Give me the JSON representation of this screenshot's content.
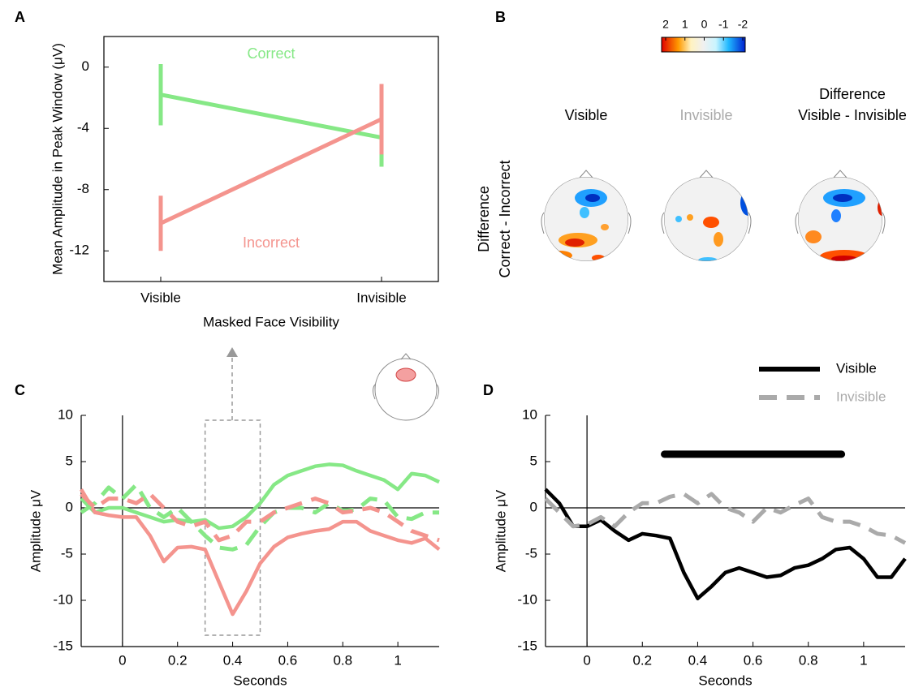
{
  "chart_data": [
    {
      "type": "line",
      "panel": "A",
      "ylabel": "Mean Amplitude in Peak Window (μV)",
      "xlabel": "Masked Face Visibility",
      "categories": [
        "Visible",
        "Invisible"
      ],
      "ylim": [
        -14,
        2
      ],
      "yticks": [
        -12,
        -8,
        -4,
        0
      ],
      "box": true,
      "inline_labels": true,
      "series": [
        {
          "name": "Correct",
          "color": "#86e886",
          "values": [
            -1.8,
            -4.6
          ],
          "errors": [
            2.0,
            1.9
          ]
        },
        {
          "name": "Incorrect",
          "color": "#f4948e",
          "values": [
            -10.2,
            -3.4
          ],
          "errors": [
            1.8,
            2.3
          ]
        }
      ]
    },
    {
      "type": "topomap",
      "panel": "B",
      "clim": [
        2,
        -2
      ],
      "cticks": [
        2,
        1,
        0,
        -1,
        -2
      ],
      "columns": [
        {
          "lines": [
            "Visible"
          ],
          "color": "#000000"
        },
        {
          "lines": [
            "Invisible"
          ],
          "color": "#aaaaaa"
        },
        {
          "lines": [
            "Difference",
            "Visible - Invisible"
          ],
          "color": "#000000"
        }
      ],
      "row_label": [
        "Difference",
        "Correct - Incorrect"
      ]
    },
    {
      "type": "line",
      "panel": "C",
      "ylabel": "Amplitude μV",
      "xlabel": "Seconds",
      "xlim": [
        -0.15,
        1.15
      ],
      "ylim": [
        -15,
        10
      ],
      "xticks": [
        0,
        0.2,
        0.4,
        0.6,
        0.8,
        1
      ],
      "yticks": [
        -15,
        -10,
        -5,
        0,
        5,
        10
      ],
      "zero_lines": true,
      "window": {
        "start": 0.3,
        "end": 0.5
      },
      "x": [
        -0.15,
        -0.1,
        -0.05,
        0,
        0.05,
        0.1,
        0.15,
        0.2,
        0.25,
        0.3,
        0.35,
        0.4,
        0.45,
        0.5,
        0.55,
        0.6,
        0.65,
        0.7,
        0.75,
        0.8,
        0.85,
        0.9,
        0.95,
        1,
        1.05,
        1.1,
        1.15
      ],
      "series": [
        {
          "color": "#86e886",
          "dash": false,
          "values": [
            1,
            -0.5,
            0,
            0,
            -0.5,
            -1,
            -1.5,
            -1.3,
            -1.5,
            -1.3,
            -2.2,
            -2,
            -1,
            0.5,
            2.5,
            3.5,
            4,
            4.5,
            4.7,
            4.6,
            4,
            3.5,
            3,
            2,
            3.7,
            3.5,
            2.8
          ]
        },
        {
          "color": "#f4948e",
          "dash": false,
          "values": [
            2,
            -0.5,
            -0.8,
            -1,
            -1,
            -3,
            -5.8,
            -4.3,
            -4.2,
            -4.5,
            -8,
            -11.5,
            -9,
            -6,
            -4.2,
            -3.2,
            -2.8,
            -2.5,
            -2.3,
            -1.5,
            -1.5,
            -2.5,
            -3,
            -3.5,
            -3.8,
            -3.3,
            -4.5
          ]
        },
        {
          "color": "#86e886",
          "dash": true,
          "values": [
            -0.5,
            0.5,
            2.2,
            1,
            2.5,
            0,
            -1,
            0,
            -1.5,
            -3,
            -4.3,
            -4.5,
            -4,
            -2,
            -0.5,
            0,
            0,
            -0.5,
            0.5,
            -0.3,
            -0.2,
            1,
            0.8,
            -1,
            -1.2,
            -0.5,
            -0.5
          ]
        },
        {
          "color": "#f4948e",
          "dash": true,
          "values": [
            1.5,
            0,
            1,
            1,
            0.5,
            1.5,
            0,
            -1.5,
            -2,
            -1.5,
            -3.5,
            -3,
            -1.5,
            -1.5,
            -0.5,
            0,
            0.5,
            1,
            0.5,
            -0.5,
            -0.3,
            0,
            -0.5,
            -1.5,
            -2.5,
            -3,
            -3.5
          ]
        }
      ]
    },
    {
      "type": "line",
      "panel": "D",
      "ylabel": "Amplitude μV",
      "xlabel": "Seconds",
      "xlim": [
        -0.15,
        1.15
      ],
      "ylim": [
        -15,
        10
      ],
      "xticks": [
        0,
        0.2,
        0.4,
        0.6,
        0.8,
        1
      ],
      "yticks": [
        -15,
        -10,
        -5,
        0,
        5,
        10
      ],
      "zero_lines": true,
      "legend": "upper right",
      "significance": {
        "start": 0.28,
        "end": 0.92,
        "y": 5.8
      },
      "x": [
        -0.15,
        -0.1,
        -0.05,
        0,
        0.05,
        0.1,
        0.15,
        0.2,
        0.25,
        0.3,
        0.35,
        0.4,
        0.45,
        0.5,
        0.55,
        0.6,
        0.65,
        0.7,
        0.75,
        0.8,
        0.85,
        0.9,
        0.95,
        1,
        1.05,
        1.1,
        1.15
      ],
      "series": [
        {
          "name": "Visible",
          "color": "#000000",
          "dash": false,
          "values": [
            2,
            0.5,
            -2,
            -2,
            -1.3,
            -2.5,
            -3.5,
            -2.8,
            -3,
            -3.3,
            -7,
            -9.8,
            -8.5,
            -7,
            -6.5,
            -7,
            -7.5,
            -7.3,
            -6.5,
            -6.2,
            -5.5,
            -4.5,
            -4.3,
            -5.5,
            -7.5,
            -7.5,
            -5.5
          ]
        },
        {
          "name": "Invisible",
          "color": "#aaaaaa",
          "dash": true,
          "values": [
            1,
            -0.5,
            -2,
            -1.8,
            -1,
            -2,
            -0.5,
            0.5,
            0.5,
            1.2,
            1.5,
            0.5,
            1.5,
            0,
            -0.5,
            -1.5,
            0,
            -0.5,
            0.3,
            1,
            -1,
            -1.5,
            -1.5,
            -2,
            -2.8,
            -3,
            -3.8
          ]
        }
      ]
    }
  ]
}
